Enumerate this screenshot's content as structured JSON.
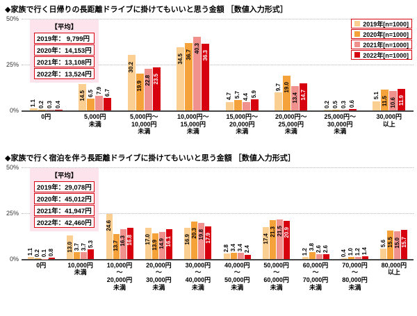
{
  "colors": {
    "y2019": "#FBCE92",
    "y2020": "#F5A23B",
    "y2021": "#F0918E",
    "y2022": "#D7000F",
    "legend_border": "#D7000F",
    "avg_box_bg": "#FCE3EC",
    "grid": "#B5B5B5"
  },
  "chart_data": [
    {
      "type": "bar",
      "title": "◆家族で行く日帰りの長距離ドライブに掛けてもいいと思う金額 ［数値入力形式］",
      "ylim": [
        0,
        50
      ],
      "yticks": [
        "0%",
        "25%",
        "50%"
      ],
      "grid": true,
      "show_legend": true,
      "categories": [
        "0円",
        "5,000円\n未満",
        "5,000円～\n10,000円\n未満",
        "10,000円～\n15,000円\n未満",
        "15,000円～\n20,000円\n未満",
        "20,000円～\n25,000円\n未満",
        "25,000円～\n30,000円\n未満",
        "30,000円\n以上"
      ],
      "series": [
        {
          "name": "2019年[n=1000]",
          "color": "#FBCE92",
          "label_inside_color": "#000000",
          "values": [
            1.1,
            14.5,
            30.2,
            34.5,
            4.7,
            9.7,
            0.2,
            5.1
          ]
        },
        {
          "name": "2020年[n=1000]",
          "color": "#F5A23B",
          "label_inside_color": "#000000",
          "values": [
            0.2,
            6.5,
            19.9,
            36.7,
            5.7,
            19.0,
            0.5,
            11.5
          ]
        },
        {
          "name": "2021年[n=1000]",
          "color": "#F0918E",
          "label_inside_color": "#000000",
          "values": [
            0.3,
            7.9,
            22.8,
            40.3,
            4.4,
            13.4,
            0.3,
            10.6
          ]
        },
        {
          "name": "2022年[n=1000]",
          "color": "#D7000F",
          "label_inside_color": "#FFFFFF",
          "values": [
            0.4,
            6.7,
            23.5,
            36.3,
            5.9,
            14.7,
            0.6,
            11.9
          ]
        }
      ],
      "average_box": {
        "title": "【平均】",
        "lines": [
          "2019年：  9,799円",
          "2020年：14,153円",
          "2021年：13,108円",
          "2022年：13,524円"
        ]
      }
    },
    {
      "type": "bar",
      "title": "◆家族で行く宿泊を伴う長距離ドライブに掛けてもいいと思う金額 ［数値入力形式］",
      "ylim": [
        0,
        50
      ],
      "yticks": [
        "0%",
        "25%",
        "50%"
      ],
      "grid": true,
      "show_legend": false,
      "categories": [
        "0円",
        "10,000円\n未満",
        "10,000円\n～\n20,000円\n未満",
        "20,000円\n～\n30,000円\n未満",
        "30,000円\n～\n40,000円\n未満",
        "40,000円\n～\n50,000円\n未満",
        "50,000円\n～\n60,000円\n未満",
        "60,000円\n～\n70,000円\n未満",
        "70,000円\n～\n80,000円\n未満",
        "80,000円\n以上"
      ],
      "series": [
        {
          "name": "2019年[n=1000]",
          "color": "#FBCE92",
          "label_inside_color": "#000000",
          "values": [
            1.1,
            13.0,
            24.6,
            17.0,
            16.9,
            2.8,
            17.4,
            1.2,
            0.4,
            5.6
          ]
        },
        {
          "name": "2020年[n=1000]",
          "color": "#F5A23B",
          "label_inside_color": "#000000",
          "values": [
            0.2,
            3.7,
            13.7,
            13.9,
            20.3,
            3.4,
            21.3,
            3.8,
            1.0,
            15.5
          ]
        },
        {
          "name": "2021年[n=1000]",
          "color": "#F0918E",
          "label_inside_color": "#000000",
          "values": [
            0.1,
            3.7,
            16.3,
            14.9,
            19.8,
            3.4,
            21.5,
            2.6,
            1.2,
            15.0
          ]
        },
        {
          "name": "2022年[n=1000]",
          "color": "#D7000F",
          "label_inside_color": "#FFFFFF",
          "values": [
            0.8,
            5.3,
            16.8,
            16.1,
            17.9,
            2.4,
            20.9,
            2.6,
            1.4,
            15.7
          ]
        }
      ],
      "average_box": {
        "title": "【平均】",
        "lines": [
          "2019年：29,078円",
          "2020年：45,012円",
          "2021年：41,947円",
          "2022年：42,460円"
        ]
      }
    }
  ]
}
